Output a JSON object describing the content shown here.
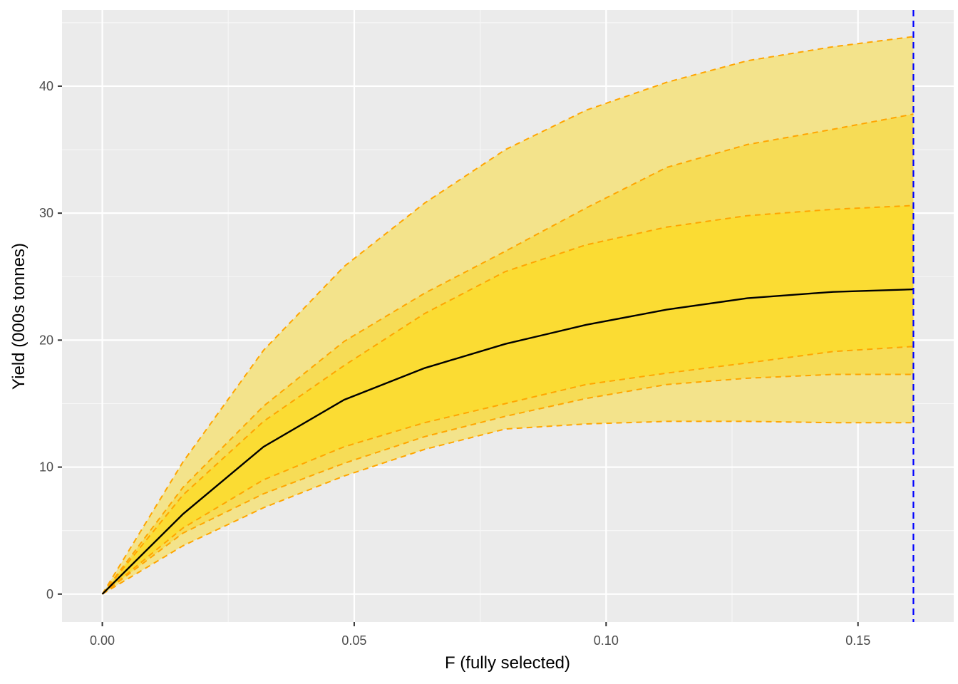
{
  "chart_data": {
    "type": "area",
    "title": "",
    "xlabel": "F (fully selected)",
    "ylabel": "Yield (000s tonnes)",
    "xlim": [
      -0.008,
      0.169
    ],
    "ylim": [
      -2.2,
      46.0
    ],
    "x_ticks": [
      {
        "value": 0.0,
        "label": "0.00"
      },
      {
        "value": 0.05,
        "label": "0.05"
      },
      {
        "value": 0.1,
        "label": "0.10"
      },
      {
        "value": 0.15,
        "label": "0.15"
      }
    ],
    "y_ticks": [
      {
        "value": 0,
        "label": "0"
      },
      {
        "value": 10,
        "label": "10"
      },
      {
        "value": 20,
        "label": "20"
      },
      {
        "value": 30,
        "label": "30"
      },
      {
        "value": 40,
        "label": "40"
      }
    ],
    "grid": true,
    "x": [
      0.0,
      0.016,
      0.032,
      0.048,
      0.064,
      0.08,
      0.096,
      0.112,
      0.128,
      0.145,
      0.161
    ],
    "median": [
      0.0,
      6.3,
      11.6,
      15.3,
      17.8,
      19.7,
      21.2,
      22.4,
      23.3,
      23.8,
      24.0
    ],
    "bands": [
      {
        "lower": [
          0.0,
          3.8,
          6.8,
          9.3,
          11.4,
          13.0,
          13.4,
          13.6,
          13.6,
          13.5,
          13.5
        ],
        "upper": [
          0.0,
          10.4,
          19.2,
          25.8,
          30.8,
          35.0,
          38.1,
          40.3,
          42.0,
          43.1,
          43.9
        ],
        "fill": "#f3e38b"
      },
      {
        "lower": [
          0.0,
          4.8,
          7.9,
          10.3,
          12.4,
          14.0,
          15.4,
          16.5,
          17.0,
          17.3,
          17.3
        ],
        "upper": [
          0.0,
          8.4,
          14.8,
          19.9,
          23.7,
          27.0,
          30.4,
          33.6,
          35.4,
          36.6,
          37.8
        ],
        "fill": "#f6dc56"
      },
      {
        "lower": [
          0.0,
          5.2,
          9.0,
          11.6,
          13.5,
          15.0,
          16.5,
          17.4,
          18.2,
          19.1,
          19.5
        ],
        "upper": [
          0.0,
          7.8,
          13.6,
          18.0,
          22.1,
          25.4,
          27.5,
          28.9,
          29.8,
          30.3,
          30.6
        ],
        "fill": "#fbdc33"
      }
    ],
    "vline_x": 0.161,
    "colors": {
      "panel_background": "#ebebeb",
      "grid_major": "#ffffff",
      "grid_minor": "#f7f7f7",
      "band_line": "#ffa500",
      "median_line": "#000000",
      "vline": "#0000ff",
      "tick_label": "#4d4d4d"
    }
  }
}
